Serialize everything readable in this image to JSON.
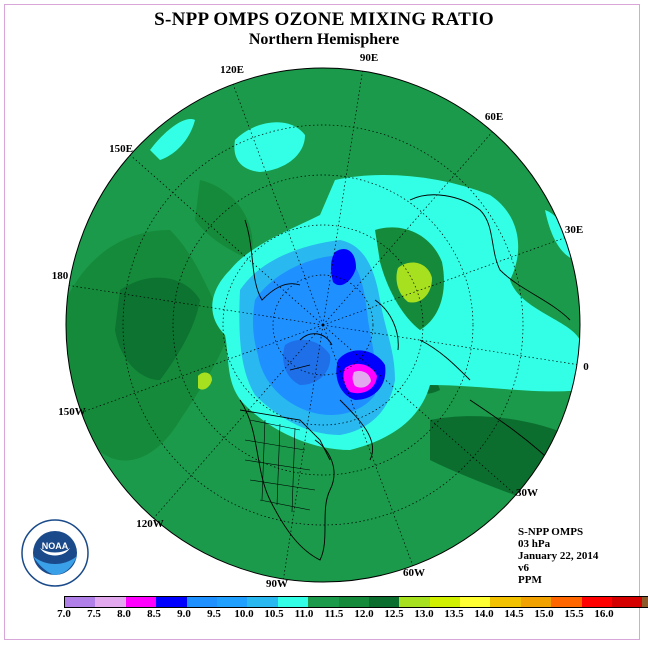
{
  "title": "S-NPP OMPS OZONE MIXING RATIO",
  "subtitle": "Northern Hemisphere",
  "longitudes": [
    "90E",
    "60E",
    "30E",
    "0",
    "30W",
    "60W",
    "90W",
    "120W",
    "150W",
    "180",
    "150E",
    "120E"
  ],
  "info": [
    "S-NPP OMPS",
    "03 hPa",
    "January 22, 2014",
    "v6",
    "PPM"
  ],
  "colorbar": {
    "colors": [
      "#b07fe8",
      "#e3a9ef",
      "#ff00ff",
      "#0000ff",
      "#1e90ff",
      "#1fa0ff",
      "#29b8f0",
      "#33ffe6",
      "#1a9a4a",
      "#158a3a",
      "#0b6e2f",
      "#a6e01f",
      "#d0f000",
      "#ffff33",
      "#f2c200",
      "#f2a200",
      "#ff6600",
      "#ff0000",
      "#d40000",
      "#8b5a2b"
    ],
    "ticks": [
      "7.0",
      "7.5",
      "8.0",
      "8.5",
      "9.0",
      "9.5",
      "10.0",
      "10.5",
      "11.0",
      "11.5",
      "12.0",
      "12.5",
      "13.0",
      "13.5",
      "14.0",
      "14.5",
      "15.0",
      "15.5",
      "16.0"
    ]
  },
  "logo_text": "NOAA"
}
